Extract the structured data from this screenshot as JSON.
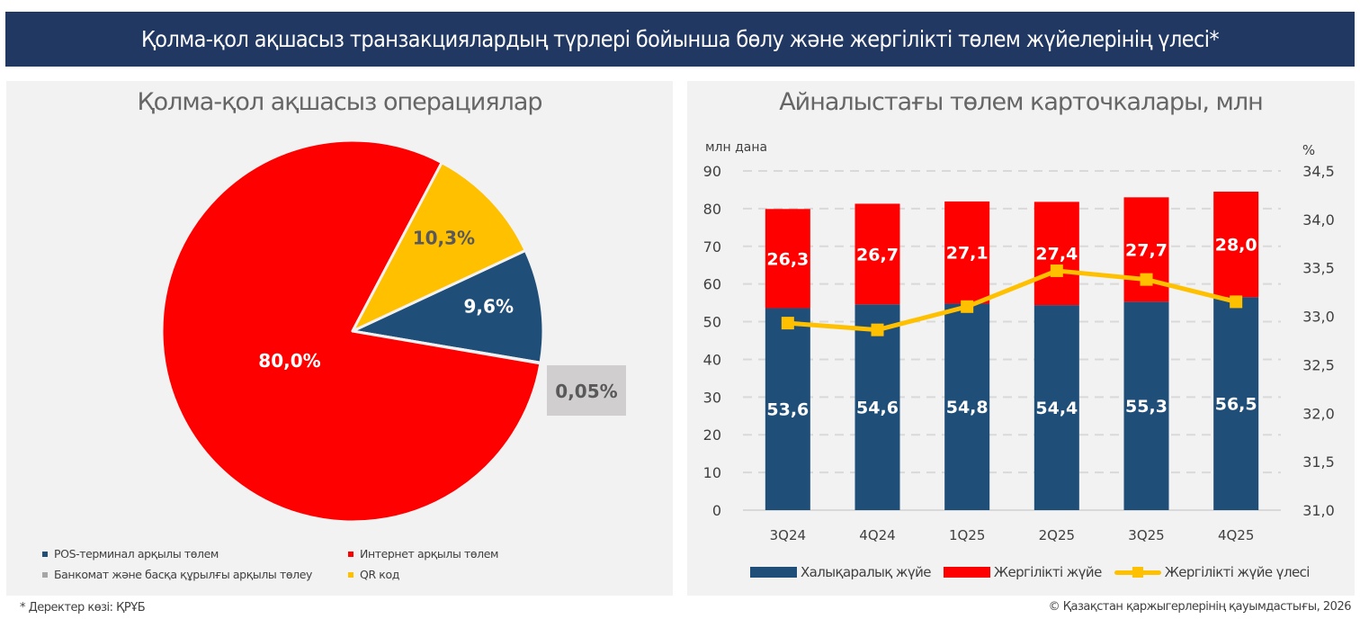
{
  "header": {
    "title": "Қолма-қол ақшасыз транзакциялардың түрлері бойынша бөлу және жергілікті төлем жүйелерінің үлесі*"
  },
  "colors": {
    "navy": "#213863",
    "blue": "#1f4e79",
    "red": "#ff0000",
    "yellow": "#ffc000",
    "gray": "#a6a6a6",
    "panel_bg": "#f2f2f2"
  },
  "chart_data": [
    {
      "type": "pie",
      "title": "Қолма-қол ақшасыз операциялар",
      "slices": [
        {
          "name": "POS-терминал арқылы төлем",
          "value": 9.6,
          "label": "9,6%",
          "color": "#1f4e79"
        },
        {
          "name": "Банкомат және басқа құрылғы арқылы төлеу",
          "value": 0.05,
          "label": "0,05%",
          "color": "#a6a6a6"
        },
        {
          "name": "Интернет арқылы төлем",
          "value": 80.0,
          "label": "80,0%",
          "color": "#ff0000"
        },
        {
          "name": "QR код",
          "value": 10.3,
          "label": "10,3%",
          "color": "#ffc000"
        }
      ],
      "legend": {
        "placement": "bottom",
        "items": [
          {
            "label": "POS-терминал арқылы төлем",
            "color": "#1f4e79"
          },
          {
            "label": "Интернет арқылы төлем",
            "color": "#ff0000"
          },
          {
            "label": "Банкомат және басқа құрылғы арқылы төлеу",
            "color": "#a6a6a6"
          },
          {
            "label": "QR код",
            "color": "#ffc000"
          }
        ]
      }
    },
    {
      "type": "bar",
      "stacked": true,
      "title": "Айналыстағы төлем карточкалары, млн",
      "categories": [
        "3Q24",
        "4Q24",
        "1Q25",
        "2Q25",
        "3Q25",
        "4Q25"
      ],
      "ylabel": "млн дана",
      "ylim": [
        0,
        90
      ],
      "yticks": [
        "0",
        "10",
        "20",
        "30",
        "40",
        "50",
        "60",
        "70",
        "80",
        "90"
      ],
      "y2label": "%",
      "y2lim": [
        31.0,
        34.5
      ],
      "y2ticks": [
        "31,0",
        "31,5",
        "32,0",
        "32,5",
        "33,0",
        "33,5",
        "34,0",
        "34,5"
      ],
      "grid": true,
      "series": [
        {
          "name": "Халықаралық жүйе",
          "type": "bar",
          "color": "#1f4e79",
          "values": [
            53.6,
            54.6,
            54.8,
            54.4,
            55.3,
            56.5
          ],
          "labels": [
            "53,6",
            "54,6",
            "54,8",
            "54,4",
            "55,3",
            "56,5"
          ]
        },
        {
          "name": "Жергілікті жүйе",
          "type": "bar",
          "color": "#ff0000",
          "values": [
            26.3,
            26.7,
            27.1,
            27.4,
            27.7,
            28.0
          ],
          "labels": [
            "26,3",
            "26,7",
            "27,1",
            "27,4",
            "27,7",
            "28,0"
          ]
        },
        {
          "name": "Жергілікті жүйе үлесі",
          "type": "line",
          "axis": "y2",
          "color": "#ffc000",
          "values": [
            32.93,
            32.86,
            33.1,
            33.47,
            33.38,
            33.15
          ]
        }
      ],
      "legend": {
        "placement": "bottom",
        "items": [
          {
            "label": "Халықаралық жүйе",
            "kind": "bar",
            "color": "#1f4e79"
          },
          {
            "label": "Жергілікті жүйе",
            "kind": "bar",
            "color": "#ff0000"
          },
          {
            "label": "Жергілікті жүйе үлесі",
            "kind": "line",
            "color": "#ffc000"
          }
        ]
      }
    }
  ],
  "footer": {
    "source": "* Деректер көзі: ҚРҰБ",
    "copyright": "© Қазақстан қаржыгерлерінің қауымдастығы, 2026"
  }
}
